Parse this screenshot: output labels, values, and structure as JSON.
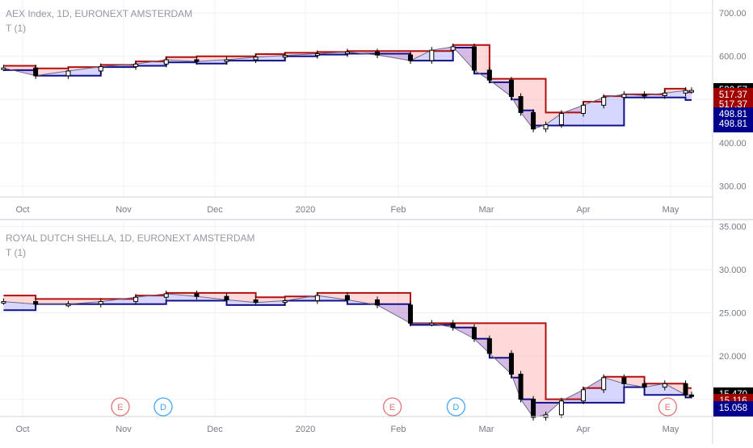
{
  "colors": {
    "grid": "#eef0f3",
    "axis_text": "#787b86",
    "red_line": "#b01010",
    "blue_line": "#10108a",
    "red_fill": "rgba(255,120,120,0.28)",
    "blue_fill": "rgba(120,120,255,0.30)",
    "tag_black": "#000000",
    "tag_red": "#a00000",
    "tag_blue": "#00008b",
    "event_red": "#e57373",
    "event_blue": "#42a5f5"
  },
  "x_axis": {
    "labels": [
      "Oct",
      "Nov",
      "Dec",
      "2020",
      "Feb",
      "Mar",
      "Apr",
      "May"
    ],
    "dates": [
      "2019-10-01",
      "2019-11-01",
      "2019-12-01",
      "2020-01-01",
      "2020-02-01",
      "2020-03-01",
      "2020-04-01",
      "2020-05-01"
    ]
  },
  "chart_data": [
    {
      "type": "candlestick",
      "title": "AEX Index, 1D, EURONEXT AMSTERDAM",
      "subtitle": "T (1)",
      "ylim": [
        275,
        730
      ],
      "y_ticks": [
        300,
        400,
        500,
        600,
        700
      ],
      "y_tick_labels": [
        "300.00",
        "400.00",
        "500.00",
        "600.00",
        "700.00"
      ],
      "x": [
        "2019-09-25",
        "2019-10-05",
        "2019-10-15",
        "2019-10-25",
        "2019-11-05",
        "2019-11-15",
        "2019-11-25",
        "2019-12-05",
        "2019-12-15",
        "2019-12-25",
        "2020-01-05",
        "2020-01-15",
        "2020-01-25",
        "2020-02-05",
        "2020-02-12",
        "2020-02-19",
        "2020-02-26",
        "2020-03-02",
        "2020-03-09",
        "2020-03-12",
        "2020-03-16",
        "2020-03-20",
        "2020-03-25",
        "2020-04-01",
        "2020-04-08",
        "2020-04-15",
        "2020-04-22",
        "2020-04-29",
        "2020-05-06",
        "2020-05-08"
      ],
      "close": [
        573,
        555,
        566,
        576,
        582,
        592,
        588,
        592,
        598,
        602,
        606,
        610,
        603,
        590,
        614,
        622,
        568,
        545,
        507,
        470,
        432,
        442,
        468,
        487,
        505,
        512,
        509,
        515,
        521,
        521
      ],
      "series": [
        {
          "name": "upper",
          "values": [
            578,
            572,
            575,
            580,
            588,
            598,
            600,
            600,
            605,
            608,
            610,
            612,
            612,
            612,
            612,
            626,
            626,
            548,
            548,
            548,
            548,
            470,
            470,
            495,
            508,
            512,
            512,
            525,
            517,
            517
          ]
        },
        {
          "name": "lower",
          "values": [
            568,
            555,
            555,
            575,
            578,
            586,
            583,
            590,
            590,
            600,
            604,
            606,
            606,
            590,
            590,
            620,
            560,
            540,
            500,
            475,
            440,
            440,
            440,
            440,
            440,
            505,
            505,
            505,
            499,
            499
          ]
        }
      ],
      "price_tags": [
        {
          "label": "520.57",
          "value": 520.57,
          "color": "black"
        },
        {
          "label": "517.37",
          "value": 509,
          "color": "red"
        },
        {
          "label": "517.37",
          "value": 486,
          "color": "red"
        },
        {
          "label": "498.81",
          "value": 465,
          "color": "blue"
        },
        {
          "label": "498.81",
          "value": 442,
          "color": "blue"
        }
      ]
    },
    {
      "type": "candlestick",
      "title": "ROYAL DUTCH SHELLA, 1D, EURONEXT AMSTERDAM",
      "subtitle": "T (1)",
      "ylim": [
        13.0,
        35.6
      ],
      "y_ticks": [
        15,
        20,
        25,
        30,
        35
      ],
      "y_tick_labels": [
        "15.000",
        "20.000",
        "25.000",
        "30.000",
        "35.000"
      ],
      "x": [
        "2019-09-25",
        "2019-10-05",
        "2019-10-15",
        "2019-10-25",
        "2019-11-05",
        "2019-11-15",
        "2019-11-25",
        "2019-12-05",
        "2019-12-15",
        "2019-12-25",
        "2020-01-05",
        "2020-01-15",
        "2020-01-25",
        "2020-02-05",
        "2020-02-12",
        "2020-02-19",
        "2020-02-26",
        "2020-03-02",
        "2020-03-09",
        "2020-03-12",
        "2020-03-16",
        "2020-03-20",
        "2020-03-25",
        "2020-04-01",
        "2020-04-08",
        "2020-04-15",
        "2020-04-22",
        "2020-04-29",
        "2020-05-06",
        "2020-05-08"
      ],
      "close": [
        26.3,
        26.0,
        26.0,
        26.3,
        26.8,
        27.2,
        26.9,
        26.5,
        26.2,
        26.4,
        27.0,
        26.5,
        25.9,
        23.8,
        23.8,
        23.3,
        22.0,
        20.3,
        17.9,
        15.0,
        12.9,
        13.2,
        14.8,
        16.1,
        17.5,
        16.8,
        16.4,
        16.8,
        15.5,
        15.47
      ],
      "series": [
        {
          "name": "upper",
          "values": [
            27.0,
            26.6,
            26.6,
            26.6,
            27.0,
            27.3,
            27.3,
            27.3,
            26.8,
            26.9,
            27.3,
            27.3,
            27.3,
            23.8,
            23.8,
            23.8,
            23.8,
            23.8,
            23.8,
            23.8,
            23.8,
            15.0,
            15.0,
            16.3,
            17.6,
            17.6,
            16.8,
            16.8,
            16.3,
            16.3
          ]
        },
        {
          "name": "lower",
          "values": [
            25.3,
            26.0,
            26.0,
            26.0,
            26.0,
            26.4,
            26.4,
            25.9,
            25.9,
            26.4,
            26.4,
            26.0,
            26.0,
            23.6,
            23.6,
            23.3,
            22.0,
            19.8,
            17.5,
            15.0,
            14.6,
            14.6,
            14.6,
            14.6,
            14.6,
            16.4,
            15.5,
            15.5,
            15.2,
            15.2
          ]
        }
      ],
      "price_tags": [
        {
          "label": "15.470",
          "value": 15.47,
          "color": "black"
        },
        {
          "label": "15.116",
          "value": 14.7,
          "color": "red"
        },
        {
          "label": "15.116",
          "value": 13.2,
          "color": "red"
        },
        {
          "label": "15.116",
          "value": 11.9,
          "color": "blue"
        },
        {
          "label": "15.058",
          "value": 10.5,
          "color": "blue"
        }
      ],
      "events": [
        {
          "label": "E",
          "date": "2019-10-31",
          "color": "red"
        },
        {
          "label": "D",
          "date": "2019-11-14",
          "color": "blue"
        },
        {
          "label": "E",
          "date": "2020-01-30",
          "color": "red"
        },
        {
          "label": "D",
          "date": "2020-02-20",
          "color": "blue"
        },
        {
          "label": "E",
          "date": "2020-04-30",
          "color": "red"
        }
      ]
    }
  ]
}
